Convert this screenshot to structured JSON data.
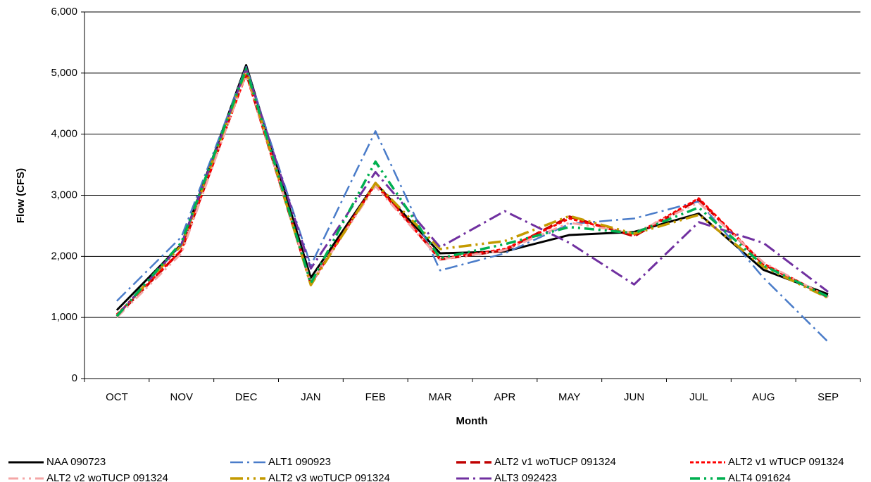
{
  "chart_data": {
    "type": "line",
    "x_label": "Month",
    "y_label": "Flow (CFS)",
    "categories": [
      "OCT",
      "NOV",
      "DEC",
      "JAN",
      "FEB",
      "MAR",
      "APR",
      "MAY",
      "JUN",
      "JUL",
      "AUG",
      "SEP"
    ],
    "ylim": [
      0,
      6000
    ],
    "yticks": [
      0,
      {
        "value": 1000,
        "label": "1,000"
      },
      {
        "value": 2000,
        "label": "2,000"
      },
      {
        "value": 3000,
        "label": "3,000"
      },
      {
        "value": 4000,
        "label": "4,000"
      },
      {
        "value": 5000,
        "label": "5,000"
      },
      {
        "value": 6000,
        "label": "6,000"
      }
    ],
    "grid": true,
    "legend": "bottom",
    "series": [
      {
        "name": "NAA 090723",
        "color": "#000000",
        "values": [
          1120,
          2200,
          5130,
          1650,
          3200,
          2050,
          2080,
          2350,
          2400,
          2700,
          1780,
          1380
        ]
      },
      {
        "name": "ALT1 090923",
        "color": "#4a7cc9",
        "values": [
          1270,
          2320,
          5100,
          1850,
          4050,
          1770,
          2050,
          2530,
          2620,
          2900,
          1650,
          600
        ]
      },
      {
        "name": "ALT2 v1 woTUCP 091324",
        "color": "#c00000",
        "values": [
          1020,
          2100,
          5000,
          1550,
          3200,
          1950,
          2100,
          2650,
          2330,
          2930,
          1870,
          1330
        ]
      },
      {
        "name": "ALT2 v1 wTUCP 091324",
        "color": "#ff0000",
        "values": [
          1050,
          2100,
          4980,
          1560,
          3180,
          1960,
          2120,
          2620,
          2350,
          2950,
          1880,
          1340
        ]
      },
      {
        "name": "ALT2 v2 woTUCP 091324",
        "color": "#f4a6a6",
        "values": [
          1000,
          2050,
          5000,
          1560,
          3150,
          1950,
          2100,
          2550,
          2380,
          2880,
          1900,
          1330
        ]
      },
      {
        "name": "ALT2 v3 woTUCP 091324",
        "color": "#c49a00",
        "values": [
          1030,
          2180,
          5050,
          1530,
          3200,
          2120,
          2250,
          2660,
          2370,
          2680,
          1830,
          1320
        ]
      },
      {
        "name": "ALT3 092423",
        "color": "#7030a0",
        "values": [
          1030,
          2200,
          5080,
          1800,
          3380,
          2150,
          2740,
          2220,
          1540,
          2560,
          2220,
          1420
        ]
      },
      {
        "name": "ALT4 091624",
        "color": "#00b050",
        "values": [
          1020,
          2230,
          5070,
          1560,
          3550,
          1970,
          2200,
          2480,
          2380,
          2800,
          1850,
          1340
        ]
      }
    ]
  }
}
